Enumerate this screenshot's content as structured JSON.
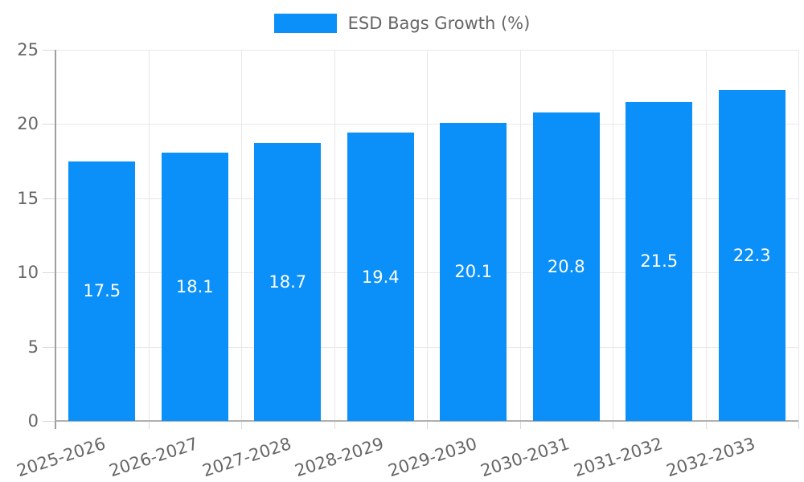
{
  "chart_data": {
    "type": "bar",
    "legend_label": "ESD Bags Growth (%)",
    "legend_position": "top",
    "categories": [
      "2025-2026",
      "2026-2027",
      "2027-2028",
      "2028-2029",
      "2029-2030",
      "2030-2031",
      "2031-2032",
      "2032-2033"
    ],
    "values": [
      17.5,
      18.1,
      18.7,
      19.4,
      20.1,
      20.8,
      21.5,
      22.3
    ],
    "ylim": [
      0,
      25
    ],
    "yticks": [
      0,
      5,
      10,
      15,
      20,
      25
    ],
    "grid": true,
    "bar_color": "#0a90f8",
    "value_label_color": "#ffffff",
    "axis_text_color": "#666666",
    "gridline_color": "#e8e8e8",
    "background_color": "#ffffff"
  }
}
